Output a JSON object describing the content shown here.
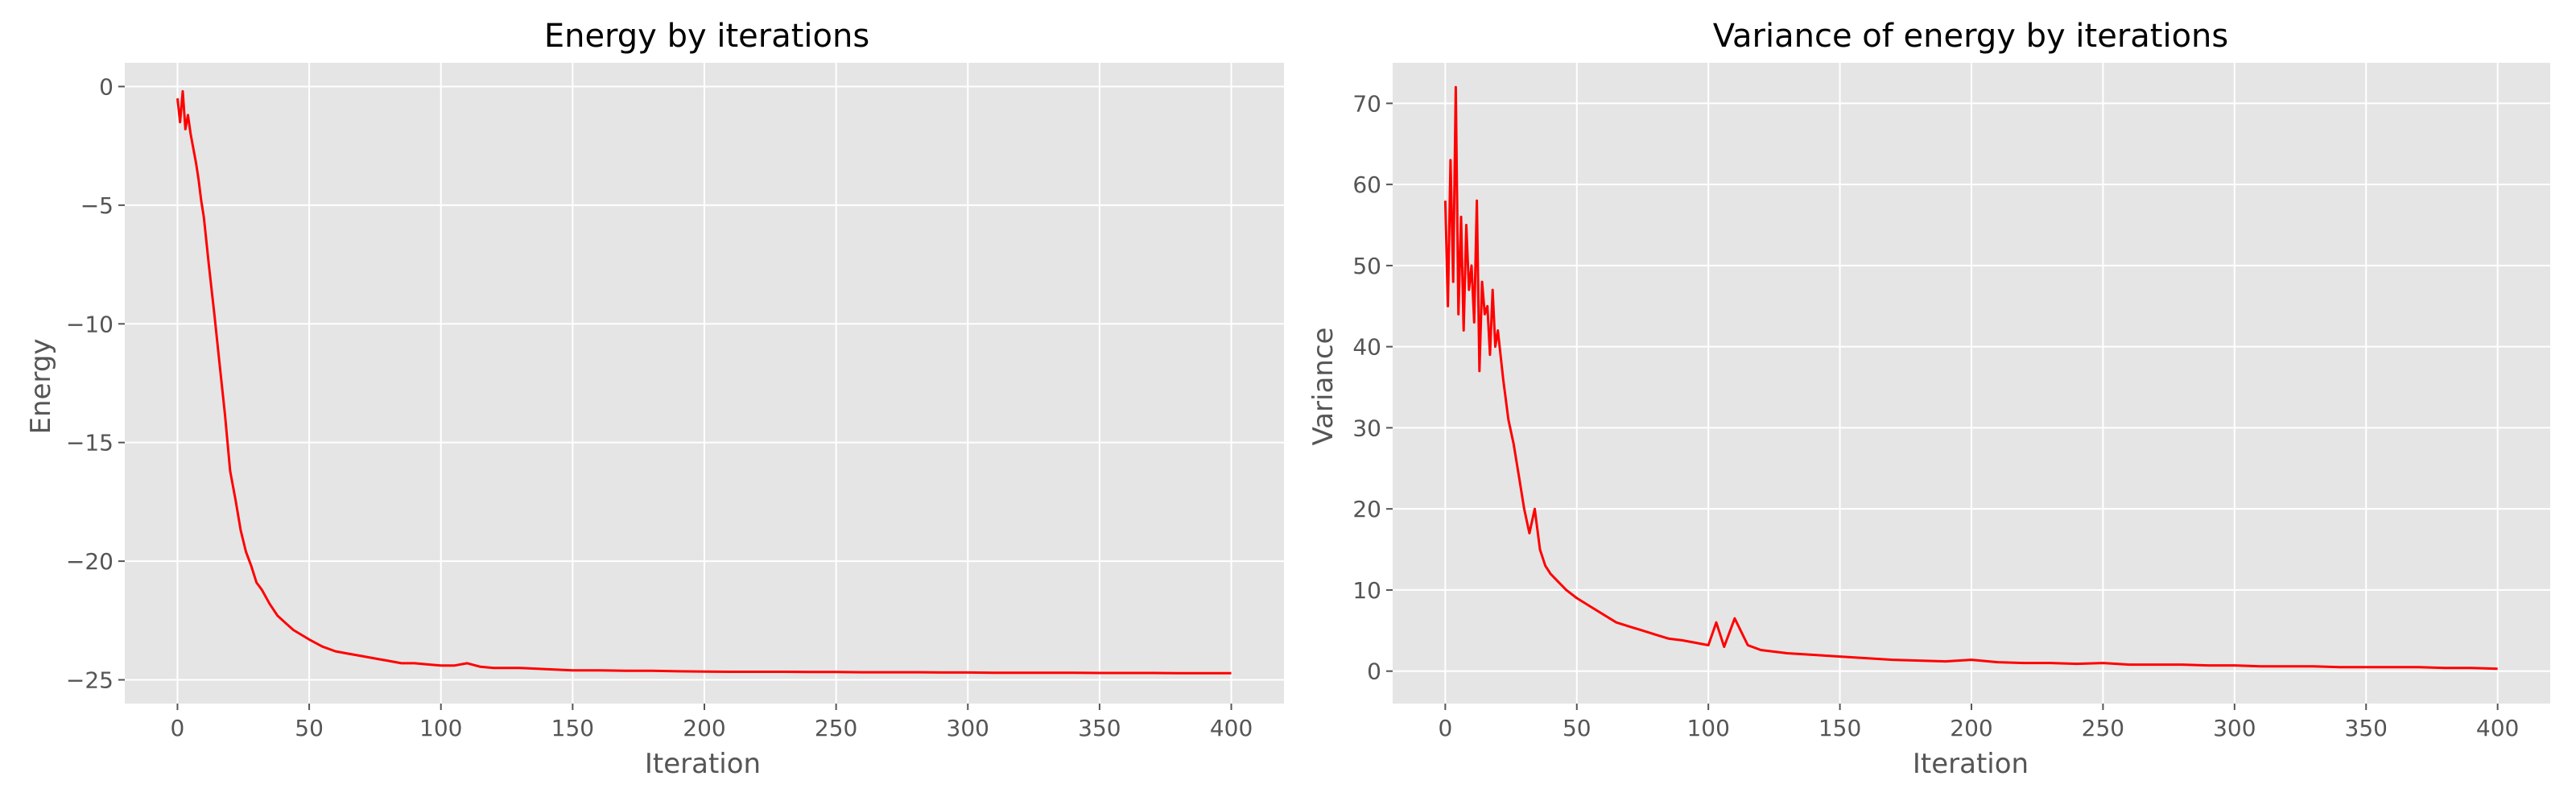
{
  "chart_data": [
    {
      "type": "line",
      "title": "Energy by iterations",
      "xlabel": "Iteration",
      "ylabel": "Energy",
      "xlim": [
        -20,
        420
      ],
      "ylim": [
        -26,
        1
      ],
      "xticks": [
        0,
        50,
        100,
        150,
        200,
        250,
        300,
        350,
        400
      ],
      "yticks": [
        0,
        -5,
        -10,
        -15,
        -20,
        -25
      ],
      "xtick_labels": [
        "0",
        "50",
        "100",
        "150",
        "200",
        "250",
        "300",
        "350",
        "400"
      ],
      "ytick_labels": [
        "0",
        "−5",
        "−10",
        "−15",
        "−20",
        "−25"
      ],
      "grid": true,
      "series": [
        {
          "color": "#ff0000",
          "x": [
            0,
            1,
            2,
            3,
            4,
            5,
            6,
            7,
            8,
            9,
            10,
            12,
            14,
            16,
            18,
            20,
            22,
            24,
            26,
            28,
            30,
            32,
            35,
            38,
            41,
            44,
            47,
            50,
            55,
            60,
            65,
            70,
            75,
            80,
            85,
            90,
            95,
            100,
            105,
            110,
            115,
            120,
            130,
            140,
            150,
            160,
            170,
            180,
            190,
            200,
            210,
            220,
            230,
            240,
            250,
            260,
            270,
            280,
            290,
            300,
            310,
            320,
            330,
            340,
            350,
            360,
            370,
            380,
            390,
            400
          ],
          "y": [
            -0.5,
            -1.5,
            -0.2,
            -1.8,
            -1.2,
            -2.0,
            -2.6,
            -3.2,
            -3.9,
            -4.8,
            -5.5,
            -7.6,
            -9.6,
            -11.7,
            -13.8,
            -16.2,
            -17.4,
            -18.7,
            -19.6,
            -20.2,
            -20.9,
            -21.2,
            -21.8,
            -22.3,
            -22.6,
            -22.9,
            -23.1,
            -23.3,
            -23.6,
            -23.8,
            -23.9,
            -24.0,
            -24.1,
            -24.2,
            -24.3,
            -24.3,
            -24.35,
            -24.4,
            -24.4,
            -24.3,
            -24.45,
            -24.5,
            -24.5,
            -24.55,
            -24.6,
            -24.6,
            -24.62,
            -24.62,
            -24.64,
            -24.65,
            -24.66,
            -24.66,
            -24.66,
            -24.67,
            -24.67,
            -24.68,
            -24.68,
            -24.68,
            -24.69,
            -24.69,
            -24.7,
            -24.7,
            -24.7,
            -24.7,
            -24.71,
            -24.71,
            -24.71,
            -24.72,
            -24.72,
            -24.72
          ]
        }
      ]
    },
    {
      "type": "line",
      "title": "Variance of energy by iterations",
      "xlabel": "Iteration",
      "ylabel": "Variance",
      "xlim": [
        -20,
        420
      ],
      "ylim": [
        -4,
        75
      ],
      "xticks": [
        0,
        50,
        100,
        150,
        200,
        250,
        300,
        350,
        400
      ],
      "yticks": [
        0,
        10,
        20,
        30,
        40,
        50,
        60,
        70
      ],
      "xtick_labels": [
        "0",
        "50",
        "100",
        "150",
        "200",
        "250",
        "300",
        "350",
        "400"
      ],
      "ytick_labels": [
        "0",
        "10",
        "20",
        "30",
        "40",
        "50",
        "60",
        "70"
      ],
      "grid": true,
      "series": [
        {
          "color": "#ff0000",
          "x": [
            0,
            1,
            2,
            3,
            4,
            5,
            6,
            7,
            8,
            9,
            10,
            11,
            12,
            13,
            14,
            15,
            16,
            17,
            18,
            19,
            20,
            22,
            24,
            26,
            28,
            30,
            32,
            34,
            36,
            38,
            40,
            43,
            46,
            50,
            55,
            60,
            65,
            70,
            75,
            80,
            85,
            90,
            95,
            100,
            103,
            106,
            110,
            115,
            120,
            130,
            140,
            150,
            160,
            170,
            180,
            190,
            200,
            210,
            220,
            230,
            240,
            250,
            260,
            270,
            280,
            290,
            300,
            310,
            320,
            330,
            340,
            350,
            360,
            370,
            380,
            390,
            400
          ],
          "y": [
            58,
            45,
            63,
            48,
            72,
            44,
            56,
            42,
            55,
            47,
            50,
            43,
            58,
            37,
            48,
            44,
            45,
            39,
            47,
            40,
            42,
            36,
            31,
            28,
            24,
            20,
            17,
            20,
            15,
            13,
            12,
            11,
            10,
            9,
            8,
            7,
            6,
            5.5,
            5,
            4.5,
            4,
            3.8,
            3.5,
            3.2,
            6,
            3,
            6.5,
            3.2,
            2.6,
            2.2,
            2.0,
            1.8,
            1.6,
            1.4,
            1.3,
            1.2,
            1.4,
            1.1,
            1.0,
            1.0,
            0.9,
            1.0,
            0.8,
            0.8,
            0.8,
            0.7,
            0.7,
            0.6,
            0.6,
            0.6,
            0.5,
            0.5,
            0.5,
            0.5,
            0.4,
            0.4,
            0.3
          ]
        }
      ]
    }
  ]
}
